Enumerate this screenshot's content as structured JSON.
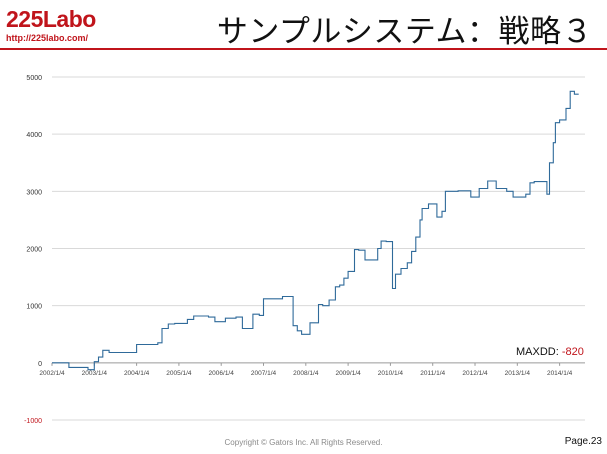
{
  "header": {
    "logo_text": "225Labo",
    "logo_url": "http://225labo.com/",
    "title": "サンプルシステム：戦略３",
    "accent_color": "#c0141b"
  },
  "chart_data": {
    "type": "line",
    "title": "",
    "xlabel": "",
    "ylabel": "",
    "line_color": "#2f6a9a",
    "grid": true,
    "ylim": [
      -1000,
      5000
    ],
    "yticks": [
      -1000,
      0,
      1000,
      2000,
      3000,
      4000,
      5000
    ],
    "ytick_labels": [
      "-1000",
      "0",
      "1000",
      "2000",
      "3000",
      "4000",
      "5000"
    ],
    "ytick_colors": {
      "-1000": "#c0141b"
    },
    "xtick_labels": [
      "2002/1/4",
      "2003/1/4",
      "2004/1/4",
      "2005/1/4",
      "2006/1/4",
      "2007/1/4",
      "2008/1/4",
      "2009/1/4",
      "2010/1/4",
      "2011/1/4",
      "2012/1/4",
      "2013/1/4",
      "2014/1/4"
    ],
    "series": [
      {
        "step": true,
        "x": [
          2002.0,
          2002.4,
          2002.85,
          2003.0,
          2003.1,
          2003.2,
          2003.35,
          2003.6,
          2004.0,
          2004.5,
          2004.6,
          2004.75,
          2004.9,
          2005.2,
          2005.35,
          2005.7,
          2005.85,
          2006.1,
          2006.35,
          2006.5,
          2006.75,
          2006.9,
          2007.0,
          2007.45,
          2007.7,
          2007.8,
          2007.9,
          2008.1,
          2008.3,
          2008.4,
          2008.55,
          2008.7,
          2008.8,
          2008.9,
          2009.0,
          2009.15,
          2009.25,
          2009.4,
          2009.7,
          2009.78,
          2009.9,
          2010.05,
          2010.12,
          2010.25,
          2010.4,
          2010.5,
          2010.6,
          2010.7,
          2010.75,
          2010.9,
          2011.1,
          2011.22,
          2011.3,
          2011.6,
          2011.9,
          2012.1,
          2012.3,
          2012.5,
          2012.75,
          2012.9,
          2013.1,
          2013.2,
          2013.3,
          2013.4,
          2013.7,
          2013.76,
          2013.85,
          2013.9,
          2014.0,
          2014.15,
          2014.25,
          2014.35,
          2014.45
        ],
        "y": [
          0,
          -80,
          -120,
          20,
          100,
          220,
          180,
          180,
          320,
          350,
          600,
          680,
          690,
          760,
          820,
          800,
          720,
          780,
          800,
          600,
          850,
          830,
          1120,
          1160,
          650,
          560,
          500,
          700,
          1020,
          1000,
          1100,
          1330,
          1360,
          1480,
          1600,
          1980,
          1970,
          1800,
          2000,
          2130,
          2120,
          1300,
          1550,
          1650,
          1750,
          1950,
          2200,
          2500,
          2700,
          2780,
          2550,
          2650,
          3000,
          3010,
          2900,
          3050,
          3180,
          3050,
          3000,
          2900,
          2900,
          2950,
          3150,
          3170,
          2950,
          3500,
          3850,
          4200,
          4250,
          4450,
          4750,
          4700,
          4700
        ]
      }
    ]
  },
  "annotation": {
    "label": "MAXDD:",
    "value": "-820",
    "value_color": "#c0141b"
  },
  "footer": {
    "copyright": "Copyright © Gators Inc. All Rights Reserved.",
    "page": "Page.23"
  }
}
